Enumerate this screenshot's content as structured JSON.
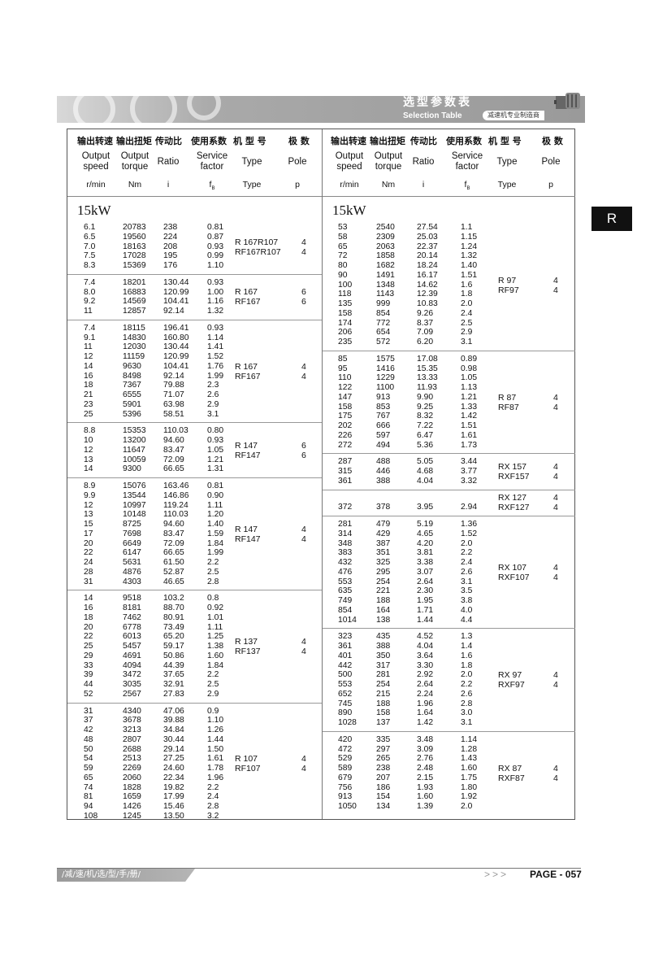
{
  "banner": {
    "title": "选型参数表",
    "subtitle": "Selection Table",
    "badge": "减速机专业制造商"
  },
  "side_tab": "R",
  "headers": {
    "cn": [
      "输出转速",
      "输出扭矩",
      "传动比",
      "使用系数",
      "机 型 号",
      "极 数"
    ],
    "en": [
      "Output\nspeed",
      "Output\ntorque",
      "Ratio",
      "Service\nfactor",
      "Type",
      "Pole"
    ],
    "units": [
      "r/min",
      "Nm",
      "i",
      "fB",
      "Type",
      "p"
    ]
  },
  "left": {
    "power": "15kW",
    "groups": [
      {
        "rows": [
          [
            "6.1",
            "20783",
            "238",
            "0.81"
          ],
          [
            "6.5",
            "19560",
            "224",
            "0.87"
          ],
          [
            "7.0",
            "18163",
            "208",
            "0.93"
          ],
          [
            "7.5",
            "17028",
            "195",
            "0.99"
          ],
          [
            "8.3",
            "15369",
            "176",
            "1.10"
          ]
        ],
        "types": [
          "R 167R107",
          "RF167R107"
        ],
        "poles": [
          "4",
          "4"
        ]
      },
      {
        "rows": [
          [
            "7.4",
            "18201",
            "130.44",
            "0.93"
          ],
          [
            "8.0",
            "16883",
            "120.99",
            "1.00"
          ],
          [
            "9.2",
            "14569",
            "104.41",
            "1.16"
          ],
          [
            "11",
            "12857",
            "92.14",
            "1.32"
          ]
        ],
        "types": [
          "R  167",
          "RF167"
        ],
        "poles": [
          "6",
          "6"
        ]
      },
      {
        "rows": [
          [
            "7.4",
            "18115",
            "196.41",
            "0.93"
          ],
          [
            "9.1",
            "14830",
            "160.80",
            "1.14"
          ],
          [
            "11",
            "12030",
            "130.44",
            "1.41"
          ],
          [
            "12",
            "11159",
            "120.99",
            "1.52"
          ],
          [
            "14",
            "9630",
            "104.41",
            "1.76"
          ],
          [
            "16",
            "8498",
            "92.14",
            "1.99"
          ],
          [
            "18",
            "7367",
            "79.88",
            "2.3"
          ],
          [
            "21",
            "6555",
            "71.07",
            "2.6"
          ],
          [
            "23",
            "5901",
            "63.98",
            "2.9"
          ],
          [
            "25",
            "5396",
            "58.51",
            "3.1"
          ]
        ],
        "types": [
          "R  167",
          "RF167"
        ],
        "poles": [
          "4",
          "4"
        ]
      },
      {
        "rows": [
          [
            "8.8",
            "15353",
            "110.03",
            "0.80"
          ],
          [
            "10",
            "13200",
            "94.60",
            "0.93"
          ],
          [
            "12",
            "11647",
            "83.47",
            "1.05"
          ],
          [
            "13",
            "10059",
            "72.09",
            "1.21"
          ],
          [
            "14",
            "9300",
            "66.65",
            "1.31"
          ]
        ],
        "types": [
          "R  147",
          "RF147"
        ],
        "poles": [
          "6",
          "6"
        ]
      },
      {
        "rows": [
          [
            "8.9",
            "15076",
            "163.46",
            "0.81"
          ],
          [
            "9.9",
            "13544",
            "146.86",
            "0.90"
          ],
          [
            "12",
            "10997",
            "119.24",
            "1.11"
          ],
          [
            "13",
            "10148",
            "110.03",
            "1.20"
          ],
          [
            "15",
            "8725",
            "94.60",
            "1.40"
          ],
          [
            "17",
            "7698",
            "83.47",
            "1.59"
          ],
          [
            "20",
            "6649",
            "72.09",
            "1.84"
          ],
          [
            "22",
            "6147",
            "66.65",
            "1.99"
          ],
          [
            "24",
            "5631",
            "61.50",
            "2.2"
          ],
          [
            "28",
            "4876",
            "52.87",
            "2.5"
          ],
          [
            "31",
            "4303",
            "46.65",
            "2.8"
          ]
        ],
        "types": [
          "R  147",
          "RF147"
        ],
        "poles": [
          "4",
          "4"
        ]
      },
      {
        "rows": [
          [
            "14",
            "9518",
            "103.2",
            "0.8"
          ],
          [
            "16",
            "8181",
            "88.70",
            "0.92"
          ],
          [
            "18",
            "7462",
            "80.91",
            "1.01"
          ],
          [
            "20",
            "6778",
            "73.49",
            "1.11"
          ],
          [
            "22",
            "6013",
            "65.20",
            "1.25"
          ],
          [
            "25",
            "5457",
            "59.17",
            "1.38"
          ],
          [
            "29",
            "4691",
            "50.86",
            "1.60"
          ],
          [
            "33",
            "4094",
            "44.39",
            "1.84"
          ],
          [
            "39",
            "3472",
            "37.65",
            "2.2"
          ],
          [
            "44",
            "3035",
            "32.91",
            "2.5"
          ],
          [
            "52",
            "2567",
            "27.83",
            "2.9"
          ]
        ],
        "types": [
          "R  137",
          "RF137"
        ],
        "poles": [
          "4",
          "4"
        ]
      },
      {
        "rows": [
          [
            "31",
            "4340",
            "47.06",
            "0.9"
          ],
          [
            "37",
            "3678",
            "39.88",
            "1.10"
          ],
          [
            "42",
            "3213",
            "34.84",
            "1.26"
          ],
          [
            "48",
            "2807",
            "30.44",
            "1.44"
          ],
          [
            "50",
            "2688",
            "29.14",
            "1.50"
          ],
          [
            "54",
            "2513",
            "27.25",
            "1.61"
          ],
          [
            "59",
            "2269",
            "24.60",
            "1.78"
          ],
          [
            "65",
            "2060",
            "22.34",
            "1.96"
          ],
          [
            "74",
            "1828",
            "19.82",
            "2.2"
          ],
          [
            "81",
            "1659",
            "17.99",
            "2.4"
          ],
          [
            "94",
            "1426",
            "15.46",
            "2.8"
          ],
          [
            "108",
            "1245",
            "13.50",
            "3.2"
          ]
        ],
        "types": [
          "R  107",
          "RF107"
        ],
        "poles": [
          "4",
          "4"
        ]
      }
    ]
  },
  "right": {
    "power": "15kW",
    "groups": [
      {
        "rows": [
          [
            "53",
            "2540",
            "27.54",
            "1.1"
          ],
          [
            "58",
            "2309",
            "25.03",
            "1.15"
          ],
          [
            "65",
            "2063",
            "22.37",
            "1.24"
          ],
          [
            "72",
            "1858",
            "20.14",
            "1.32"
          ],
          [
            "80",
            "1682",
            "18.24",
            "1.40"
          ],
          [
            "90",
            "1491",
            "16.17",
            "1.51"
          ],
          [
            "100",
            "1348",
            "14.62",
            "1.6"
          ],
          [
            "118",
            "1143",
            "12.39",
            "1.8"
          ],
          [
            "135",
            "999",
            "10.83",
            "2.0"
          ],
          [
            "158",
            "854",
            "9.26",
            "2.4"
          ],
          [
            "174",
            "772",
            "8.37",
            "2.5"
          ],
          [
            "206",
            "654",
            "7.09",
            "2.9"
          ],
          [
            "235",
            "572",
            "6.20",
            "3.1"
          ]
        ],
        "types": [
          "R  97",
          "RF97"
        ],
        "poles": [
          "4",
          "4"
        ]
      },
      {
        "rows": [
          [
            "85",
            "1575",
            "17.08",
            "0.89"
          ],
          [
            "95",
            "1416",
            "15.35",
            "0.98"
          ],
          [
            "110",
            "1229",
            "13.33",
            "1.05"
          ],
          [
            "122",
            "1100",
            "11.93",
            "1.13"
          ],
          [
            "147",
            "913",
            "9.90",
            "1.21"
          ],
          [
            "158",
            "853",
            "9.25",
            "1.33"
          ],
          [
            "175",
            "767",
            "8.32",
            "1.42"
          ],
          [
            "202",
            "666",
            "7.22",
            "1.51"
          ],
          [
            "226",
            "597",
            "6.47",
            "1.61"
          ],
          [
            "272",
            "494",
            "5.36",
            "1.73"
          ]
        ],
        "types": [
          "R  87",
          "RF87"
        ],
        "poles": [
          "4",
          "4"
        ]
      },
      {
        "rows": [
          [
            "287",
            "488",
            "5.05",
            "3.44"
          ],
          [
            "315",
            "446",
            "4.68",
            "3.77"
          ],
          [
            "361",
            "388",
            "4.04",
            "3.32"
          ]
        ],
        "types": [
          "RX  157",
          "RXF157"
        ],
        "poles": [
          "4",
          "4"
        ]
      },
      {
        "rows": [
          [
            "",
            "",
            "",
            ""
          ],
          [
            "372",
            "378",
            "3.95",
            "2.94"
          ]
        ],
        "types": [
          "RX  127",
          "RXF127"
        ],
        "poles": [
          "4",
          "4"
        ]
      },
      {
        "rows": [
          [
            "281",
            "479",
            "5.19",
            "1.36"
          ],
          [
            "314",
            "429",
            "4.65",
            "1.52"
          ],
          [
            "348",
            "387",
            "4.20",
            "2.0"
          ],
          [
            "383",
            "351",
            "3.81",
            "2.2"
          ],
          [
            "432",
            "325",
            "3.38",
            "2.4"
          ],
          [
            "476",
            "295",
            "3.07",
            "2.6"
          ],
          [
            "553",
            "254",
            "2.64",
            "3.1"
          ],
          [
            "635",
            "221",
            "2.30",
            "3.5"
          ],
          [
            "749",
            "188",
            "1.95",
            "3.8"
          ],
          [
            "854",
            "164",
            "1.71",
            "4.0"
          ],
          [
            "1014",
            "138",
            "1.44",
            "4.4"
          ]
        ],
        "types": [
          "RX  107",
          "RXF107"
        ],
        "poles": [
          "4",
          "4"
        ]
      },
      {
        "rows": [
          [
            "323",
            "435",
            "4.52",
            "1.3"
          ],
          [
            "361",
            "388",
            "4.04",
            "1.4"
          ],
          [
            "401",
            "350",
            "3.64",
            "1.6"
          ],
          [
            "442",
            "317",
            "3.30",
            "1.8"
          ],
          [
            "500",
            "281",
            "2.92",
            "2.0"
          ],
          [
            "553",
            "254",
            "2.64",
            "2.2"
          ],
          [
            "652",
            "215",
            "2.24",
            "2.6"
          ],
          [
            "745",
            "188",
            "1.96",
            "2.8"
          ],
          [
            "890",
            "158",
            "1.64",
            "3.0"
          ],
          [
            "1028",
            "137",
            "1.42",
            "3.1"
          ]
        ],
        "types": [
          "RX  97",
          "RXF97"
        ],
        "poles": [
          "4",
          "4"
        ]
      },
      {
        "rows": [
          [
            "420",
            "335",
            "3.48",
            "1.14"
          ],
          [
            "472",
            "297",
            "3.09",
            "1.28"
          ],
          [
            "529",
            "265",
            "2.76",
            "1.43"
          ],
          [
            "589",
            "238",
            "2.48",
            "1.60"
          ],
          [
            "679",
            "207",
            "2.15",
            "1.75"
          ],
          [
            "756",
            "186",
            "1.93",
            "1.80"
          ],
          [
            "913",
            "154",
            "1.60",
            "1.92"
          ],
          [
            "1050",
            "134",
            "1.39",
            "2.0"
          ]
        ],
        "types": [
          "RX  87",
          "RXF87"
        ],
        "poles": [
          "4",
          "4"
        ]
      }
    ]
  },
  "footer": {
    "tag": "/减/速/机/选/型/手/册/",
    "arrows": ">>>",
    "page": "PAGE - 057"
  }
}
